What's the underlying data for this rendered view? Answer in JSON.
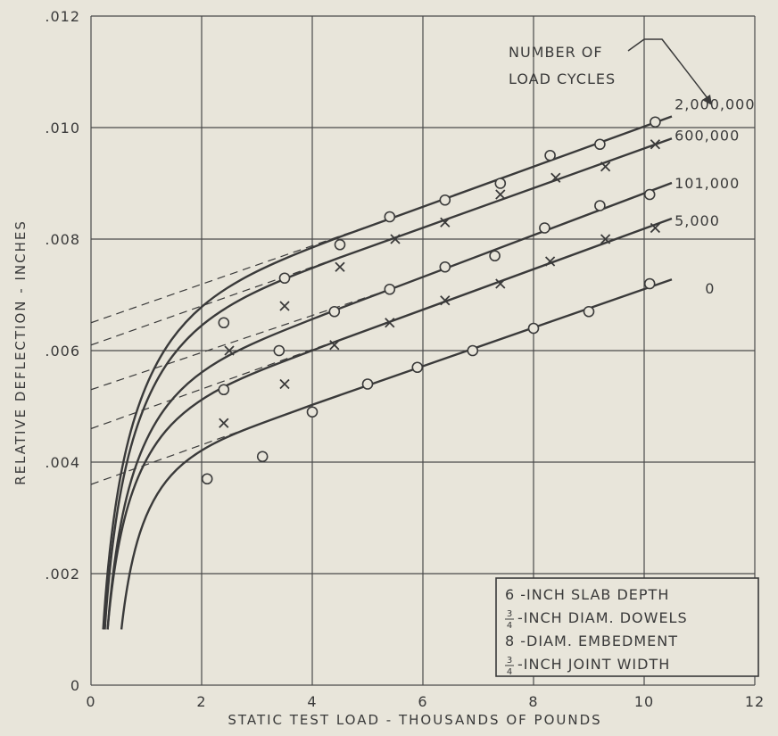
{
  "chart_data": {
    "type": "line",
    "xlabel": "STATIC TEST LOAD - THOUSANDS OF POUNDS",
    "ylabel": "RELATIVE DEFLECTION - INCHES",
    "xlim": [
      0,
      12
    ],
    "ylim": [
      0,
      0.012
    ],
    "x_ticks": [
      "0",
      "2",
      "4",
      "6",
      "8",
      "10",
      "12"
    ],
    "y_ticks": [
      "0",
      ".002",
      ".004",
      ".006",
      ".008",
      ".010",
      ".012"
    ],
    "grid": true,
    "legend_title": [
      "NUMBER OF",
      "LOAD CYCLES"
    ],
    "series": [
      {
        "name": "2,000,000",
        "marker": "circle",
        "points": [
          [
            2.4,
            0.0065
          ],
          [
            3.5,
            0.0073
          ],
          [
            4.5,
            0.0079
          ],
          [
            5.4,
            0.0084
          ],
          [
            6.4,
            0.0087
          ],
          [
            7.4,
            0.009
          ],
          [
            8.3,
            0.0095
          ],
          [
            9.2,
            0.0097
          ],
          [
            10.2,
            0.0101
          ]
        ],
        "extrapolation_intercept": 0.0065
      },
      {
        "name": "600,000",
        "marker": "x",
        "points": [
          [
            2.5,
            0.006
          ],
          [
            3.5,
            0.0068
          ],
          [
            4.5,
            0.0075
          ],
          [
            5.5,
            0.008
          ],
          [
            6.4,
            0.0083
          ],
          [
            7.4,
            0.0088
          ],
          [
            8.4,
            0.0091
          ],
          [
            9.3,
            0.0093
          ],
          [
            10.2,
            0.0097
          ]
        ],
        "extrapolation_intercept": 0.0061
      },
      {
        "name": "101,000",
        "marker": "circle",
        "points": [
          [
            2.4,
            0.0053
          ],
          [
            3.4,
            0.006
          ],
          [
            4.4,
            0.0067
          ],
          [
            5.4,
            0.0071
          ],
          [
            6.4,
            0.0075
          ],
          [
            7.3,
            0.0077
          ],
          [
            8.2,
            0.0082
          ],
          [
            9.2,
            0.0086
          ],
          [
            10.1,
            0.0088
          ]
        ],
        "extrapolation_intercept": 0.0053
      },
      {
        "name": "5,000",
        "marker": "x",
        "points": [
          [
            2.4,
            0.0047
          ],
          [
            3.5,
            0.0054
          ],
          [
            4.4,
            0.0061
          ],
          [
            5.4,
            0.0065
          ],
          [
            6.4,
            0.0069
          ],
          [
            7.4,
            0.0072
          ],
          [
            8.3,
            0.0076
          ],
          [
            9.3,
            0.008
          ],
          [
            10.2,
            0.0082
          ]
        ],
        "extrapolation_intercept": 0.0046
      },
      {
        "name": "0",
        "marker": "circle",
        "points": [
          [
            2.1,
            0.0037
          ],
          [
            3.1,
            0.0041
          ],
          [
            4.0,
            0.0049
          ],
          [
            5.0,
            0.0054
          ],
          [
            5.9,
            0.0057
          ],
          [
            6.9,
            0.006
          ],
          [
            8.0,
            0.0064
          ],
          [
            9.0,
            0.0067
          ],
          [
            10.1,
            0.0072
          ]
        ],
        "extrapolation_intercept": 0.0036
      }
    ],
    "annotation_box": {
      "lines": [
        {
          "fraction": "",
          "text": "6 -INCH SLAB DEPTH"
        },
        {
          "fraction": "3/4",
          "text": "-INCH DIAM. DOWELS"
        },
        {
          "fraction": "",
          "text": "8 -DIAM. EMBEDMENT"
        },
        {
          "fraction": "3/4",
          "text": "-INCH JOINT WIDTH"
        }
      ],
      "placement": "bottom-right"
    },
    "colors": {
      "background": "#e8e5da",
      "ink": "#3a3a3a",
      "grid": "#4a4a4a"
    }
  }
}
